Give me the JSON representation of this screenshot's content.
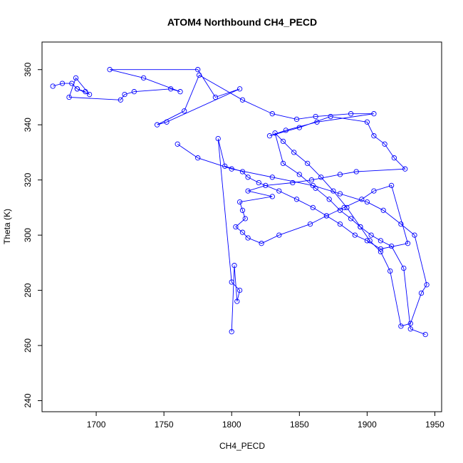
{
  "chart_data": {
    "type": "line",
    "title": "ATOM4 Northbound CH4_PECD",
    "xlabel": "CH4_PECD",
    "ylabel": "Theta (K)",
    "xlim": [
      1660,
      1955
    ],
    "ylim": [
      236,
      370
    ],
    "xticks": [
      1700,
      1750,
      1800,
      1850,
      1900,
      1950
    ],
    "yticks": [
      240,
      260,
      280,
      300,
      320,
      340,
      360
    ],
    "grid": false,
    "legend": "none",
    "series_color": "#0000ff",
    "marker": "open-circle",
    "series": [
      {
        "x": [
          1668,
          1675,
          1682,
          1686,
          1692,
          1686,
          1695,
          1685,
          1680,
          1718,
          1721,
          1728,
          1755,
          1762,
          1735,
          1710,
          1775,
          1788,
          1806,
          1752,
          1745,
          1765,
          1776,
          1808,
          1830,
          1848,
          1862,
          1888,
          1905,
          1863,
          1840,
          1828,
          1850,
          1873,
          1900,
          1905,
          1913,
          1920,
          1928,
          1892,
          1880,
          1859,
          1845,
          1825,
          1812,
          1830,
          1806,
          1808,
          1810,
          1803,
          1808,
          1812,
          1822,
          1835,
          1858,
          1870,
          1883,
          1896,
          1905,
          1918,
          1930,
          1910,
          1900,
          1891,
          1880,
          1870,
          1860,
          1848,
          1835,
          1820,
          1812,
          1808,
          1795,
          1790,
          1800,
          1806,
          1804,
          1802,
          1800
        ],
        "y": [
          354,
          355,
          355,
          353,
          352,
          353,
          351,
          357,
          350,
          349,
          351,
          352,
          353,
          352,
          357,
          360,
          360,
          350,
          353,
          341,
          340,
          345,
          358,
          349,
          344,
          342,
          343,
          344,
          344,
          341,
          338,
          336,
          339,
          343,
          341,
          336,
          333,
          328,
          324,
          323,
          322,
          320,
          319,
          318,
          316,
          314,
          312,
          309,
          306,
          303,
          301,
          299,
          297,
          300,
          304,
          307,
          310,
          313,
          316,
          318,
          297,
          295,
          298,
          300,
          304,
          307,
          310,
          313,
          316,
          319,
          321,
          323,
          325,
          335,
          283,
          280,
          276,
          289,
          265
        ]
      },
      {
        "x": [
          1760,
          1775,
          1800,
          1830,
          1860,
          1880,
          1900,
          1912,
          1925,
          1935,
          1944,
          1940,
          1932,
          1925,
          1917,
          1910,
          1902,
          1895,
          1885,
          1875,
          1866,
          1856,
          1846,
          1838,
          1832,
          1838,
          1850,
          1862,
          1872,
          1880,
          1888,
          1895,
          1903,
          1910,
          1918,
          1927,
          1932,
          1943
        ],
        "y": [
          333,
          328,
          324,
          321,
          318,
          315,
          312,
          309,
          304,
          300,
          282,
          279,
          268,
          267,
          287,
          294,
          298,
          303,
          310,
          316,
          321,
          326,
          330,
          334,
          337,
          326,
          322,
          317,
          313,
          309,
          306,
          303,
          300,
          298,
          296,
          288,
          266,
          264
        ]
      }
    ]
  }
}
